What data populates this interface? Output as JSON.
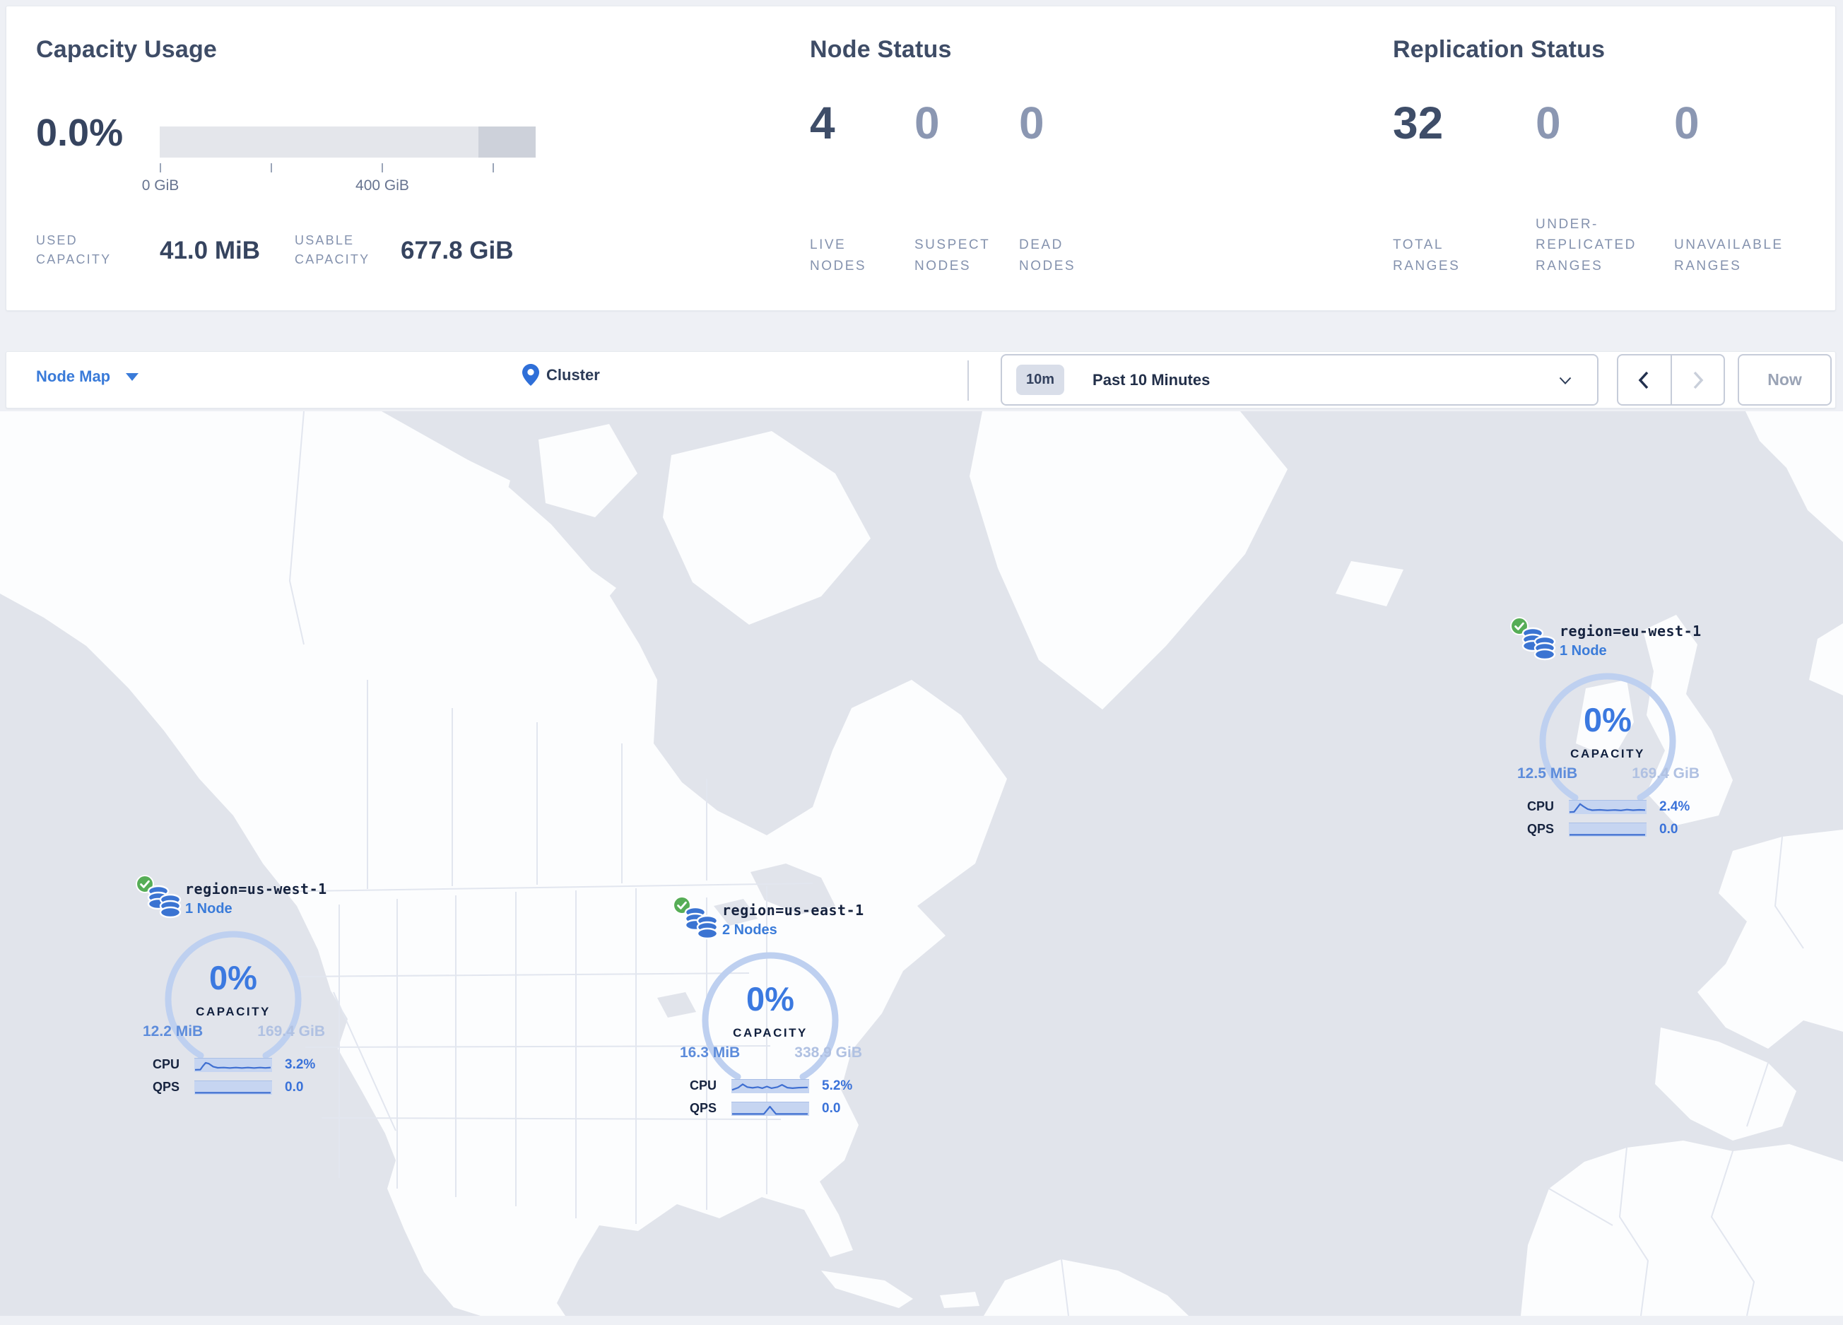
{
  "summary": {
    "capacity": {
      "title": "Capacity Usage",
      "percent": "0.0%",
      "tick_labels": [
        "0 GiB",
        "400 GiB"
      ],
      "used_label": "USED CAPACITY",
      "used_value": "41.0 MiB",
      "usable_label": "USABLE CAPACITY",
      "usable_value": "677.8 GiB"
    },
    "nodes": {
      "title": "Node Status",
      "stats": [
        {
          "value": "4",
          "label": "LIVE NODES"
        },
        {
          "value": "0",
          "label": "SUSPECT NODES"
        },
        {
          "value": "0",
          "label": "DEAD NODES"
        }
      ]
    },
    "replication": {
      "title": "Replication Status",
      "stats": [
        {
          "value": "32",
          "label": "TOTAL RANGES"
        },
        {
          "value": "0",
          "label": "UNDER-REPLICATED RANGES"
        },
        {
          "value": "0",
          "label": "UNAVAILABLE RANGES"
        }
      ]
    }
  },
  "toolbar": {
    "view_selector": "Node Map",
    "breadcrumb": "Cluster",
    "time": {
      "badge": "10m",
      "label": "Past 10 Minutes"
    },
    "now_button": "Now"
  },
  "map": {
    "regions": [
      {
        "name": "region=us-west-1",
        "nodes": "1 Node",
        "capacity_percent": "0%",
        "capacity_label": "CAPACITY",
        "used": "12.2 MiB",
        "total": "169.4 GiB",
        "cpu_label": "CPU",
        "cpu_value": "3.2%",
        "qps_label": "QPS",
        "qps_value": "0.0",
        "cpu_spark": [
          [
            0,
            0.9
          ],
          [
            0.07,
            0.88
          ],
          [
            0.1,
            0.6
          ],
          [
            0.14,
            0.28
          ],
          [
            0.18,
            0.35
          ],
          [
            0.24,
            0.62
          ],
          [
            0.3,
            0.72
          ],
          [
            0.38,
            0.7
          ],
          [
            0.46,
            0.74
          ],
          [
            0.54,
            0.7
          ],
          [
            0.62,
            0.74
          ],
          [
            0.7,
            0.7
          ],
          [
            0.78,
            0.74
          ],
          [
            0.86,
            0.7
          ],
          [
            0.93,
            0.73
          ],
          [
            1,
            0.7
          ]
        ],
        "qps_spark": [
          [
            0,
            0.93
          ],
          [
            1,
            0.93
          ]
        ]
      },
      {
        "name": "region=us-east-1",
        "nodes": "2 Nodes",
        "capacity_percent": "0%",
        "capacity_label": "CAPACITY",
        "used": "16.3 MiB",
        "total": "338.9 GiB",
        "cpu_label": "CPU",
        "cpu_value": "5.2%",
        "qps_label": "QPS",
        "qps_value": "0.0",
        "cpu_spark": [
          [
            0,
            0.8
          ],
          [
            0.08,
            0.6
          ],
          [
            0.14,
            0.3
          ],
          [
            0.2,
            0.55
          ],
          [
            0.27,
            0.62
          ],
          [
            0.34,
            0.55
          ],
          [
            0.4,
            0.65
          ],
          [
            0.46,
            0.5
          ],
          [
            0.52,
            0.65
          ],
          [
            0.6,
            0.55
          ],
          [
            0.66,
            0.35
          ],
          [
            0.73,
            0.6
          ],
          [
            0.8,
            0.65
          ],
          [
            0.88,
            0.6
          ],
          [
            1,
            0.58
          ]
        ],
        "qps_spark": [
          [
            0,
            0.93
          ],
          [
            0.42,
            0.93
          ],
          [
            0.5,
            0.28
          ],
          [
            0.58,
            0.93
          ],
          [
            1,
            0.93
          ]
        ]
      },
      {
        "name": "region=eu-west-1",
        "nodes": "1 Node",
        "capacity_percent": "0%",
        "capacity_label": "CAPACITY",
        "used": "12.5 MiB",
        "total": "169.4 GiB",
        "cpu_label": "CPU",
        "cpu_value": "2.4%",
        "qps_label": "QPS",
        "qps_value": "0.0",
        "cpu_spark": [
          [
            0,
            0.92
          ],
          [
            0.06,
            0.9
          ],
          [
            0.1,
            0.55
          ],
          [
            0.14,
            0.2
          ],
          [
            0.18,
            0.4
          ],
          [
            0.24,
            0.65
          ],
          [
            0.3,
            0.75
          ],
          [
            0.4,
            0.72
          ],
          [
            0.5,
            0.76
          ],
          [
            0.6,
            0.73
          ],
          [
            0.68,
            0.77
          ],
          [
            0.76,
            0.7
          ],
          [
            0.84,
            0.75
          ],
          [
            0.92,
            0.72
          ],
          [
            1,
            0.74
          ]
        ],
        "qps_spark": [
          [
            0,
            0.93
          ],
          [
            1,
            0.93
          ]
        ]
      }
    ]
  },
  "colors": {
    "accent_blue": "#3a7bd9",
    "dark_navy": "#36445f",
    "muted_label": "#8492ae",
    "status_green": "#56ad56",
    "gauge_arc": "#bed0f0",
    "spark_line": "#3f6fd1",
    "ocean": "#e1e4eb",
    "land": "#fcfdfe"
  }
}
